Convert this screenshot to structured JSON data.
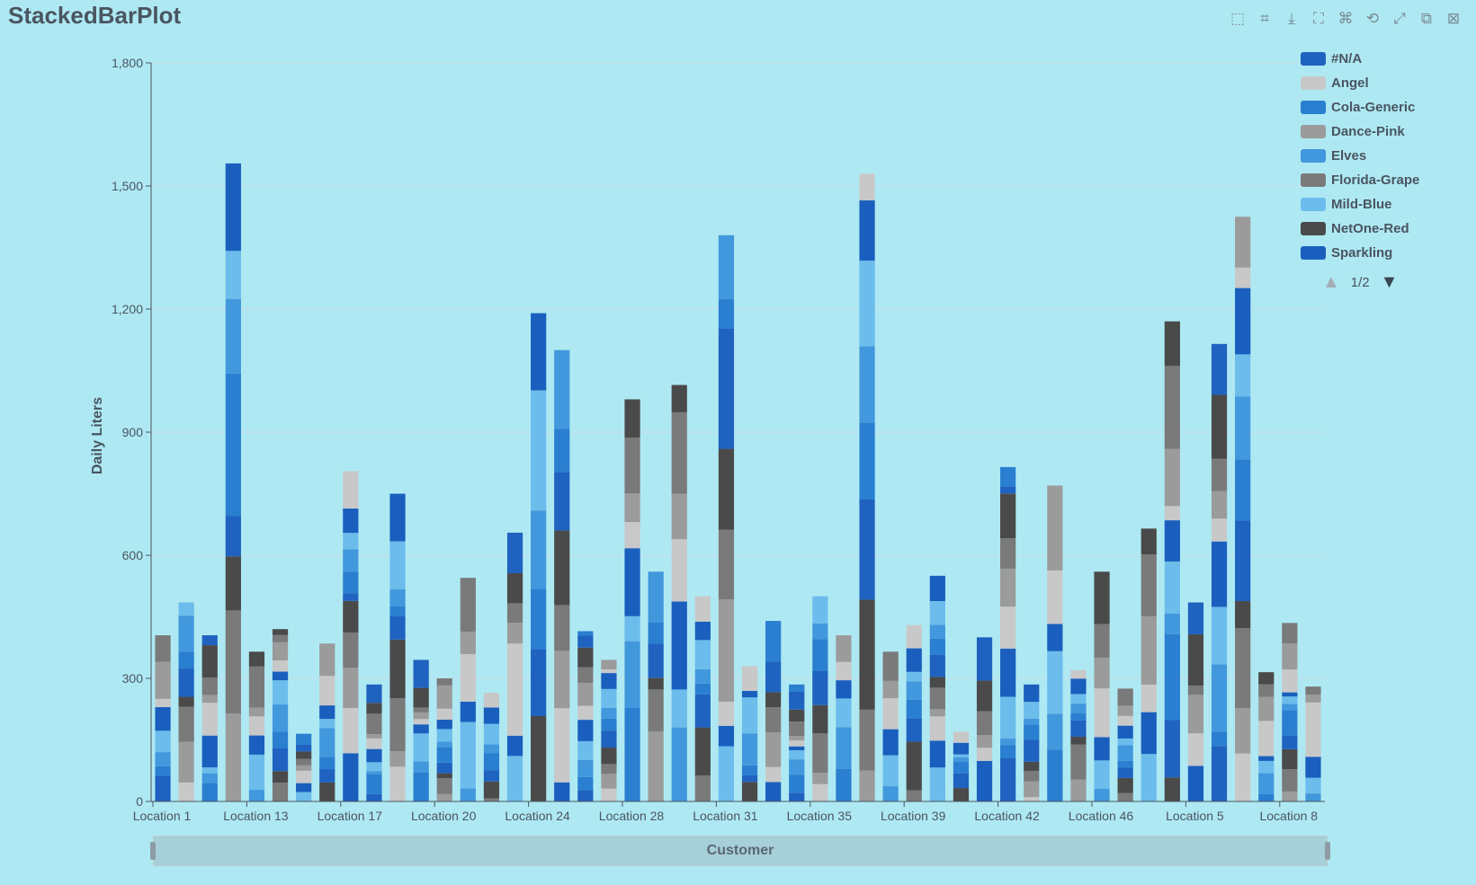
{
  "title": "StackedBarPlot",
  "toolbox": [
    {
      "name": "rect-select-icon",
      "glyph": "⬚"
    },
    {
      "name": "polygon-select-icon",
      "glyph": "⌗"
    },
    {
      "name": "download-icon",
      "glyph": "⤓"
    },
    {
      "name": "zoom-icon",
      "glyph": "⛶"
    },
    {
      "name": "lasso-icon",
      "glyph": "⌘"
    },
    {
      "name": "restore-icon",
      "glyph": "⟲"
    },
    {
      "name": "fullscreen-icon",
      "glyph": "⤢"
    },
    {
      "name": "data-view-icon",
      "glyph": "⧉"
    },
    {
      "name": "clear-icon",
      "glyph": "⊠"
    }
  ],
  "legend": {
    "items": [
      {
        "label": "#N/A",
        "color": "#1f62c0"
      },
      {
        "label": "Angel",
        "color": "#c8c8c8"
      },
      {
        "label": "Cola-Generic",
        "color": "#2a7fd0"
      },
      {
        "label": "Dance-Pink",
        "color": "#9b9b9b"
      },
      {
        "label": "Elves",
        "color": "#4298dc"
      },
      {
        "label": "Florida-Grape",
        "color": "#7a7a7a"
      },
      {
        "label": "Mild-Blue",
        "color": "#6cbcec"
      },
      {
        "label": "NetOne-Red",
        "color": "#4a4a4a"
      },
      {
        "label": "Sparkling",
        "color": "#1a5fbe"
      }
    ],
    "pager": "1/2"
  },
  "zoom": {
    "label": "Customer"
  },
  "chart_data": {
    "type": "bar",
    "stacked": true,
    "title": "StackedBarPlot",
    "xlabel": "Customer",
    "ylabel": "Daily Liters",
    "ylim": [
      0,
      1800
    ],
    "yticks": [
      0,
      300,
      600,
      900,
      1200,
      1500,
      1800
    ],
    "ytick_labels": [
      "0",
      "300",
      "600",
      "900",
      "1,200",
      "1,500",
      "1,800"
    ],
    "x_tick_labels": [
      "Location 1",
      "Location 13",
      "Location 17",
      "Location 20",
      "Location 24",
      "Location 28",
      "Location 31",
      "Location 35",
      "Location 39",
      "Location 42",
      "Location 46",
      "Location 5",
      "Location 8"
    ],
    "grid": true,
    "legend_position": "top-right",
    "bar_count": 50,
    "totals": [
      405,
      485,
      405,
      1555,
      365,
      420,
      165,
      385,
      805,
      285,
      750,
      345,
      300,
      545,
      265,
      655,
      1190,
      1100,
      415,
      345,
      980,
      560,
      1015,
      500,
      1380,
      330,
      440,
      285,
      500,
      405,
      1530,
      365,
      430,
      550,
      170,
      400,
      815,
      285,
      770,
      320,
      560,
      275,
      665,
      1170,
      485,
      1115,
      1425,
      315,
      435,
      280
    ]
  }
}
